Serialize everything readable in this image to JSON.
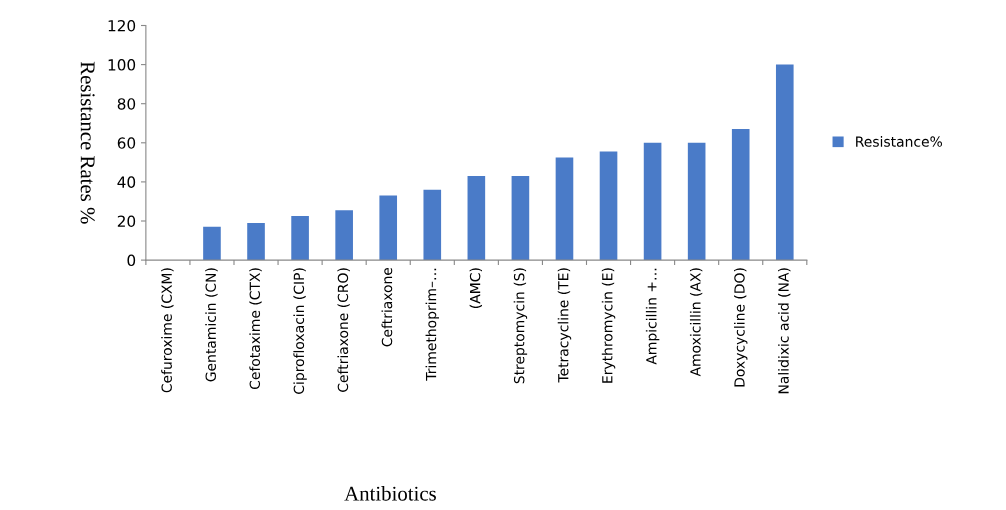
{
  "chart_data": {
    "type": "bar",
    "xlabel": "Antibiotics",
    "ylabel": "Resistance Rates %",
    "categories": [
      "Cefuroxime (CXM)",
      "Gentamicin (CN)",
      "Cefotaxime (CTX)",
      "Ciprofloxacin (CIP)",
      "Ceftriaxone (CRO)",
      "Ceftriaxone",
      "Trimethoprim–…",
      "(AMC)",
      "Streptomycin (S)",
      "Tetracycline (TE)",
      "Erythromycin (E)",
      "Ampicillin +…",
      "Amoxicillin (AX)",
      "Doxycycline (DO)",
      "Nalidixic acid (NA)"
    ],
    "series": [
      {
        "name": "Resistance%",
        "color": "#4a7bc8",
        "values": [
          0,
          17,
          19,
          22.5,
          25.5,
          33,
          36,
          43,
          43,
          52.5,
          55.5,
          60,
          60,
          67,
          100
        ]
      }
    ],
    "ylim": [
      0,
      120
    ],
    "yticks": [
      0,
      20,
      40,
      60,
      80,
      100,
      120
    ],
    "grid": false,
    "legend": "right"
  }
}
